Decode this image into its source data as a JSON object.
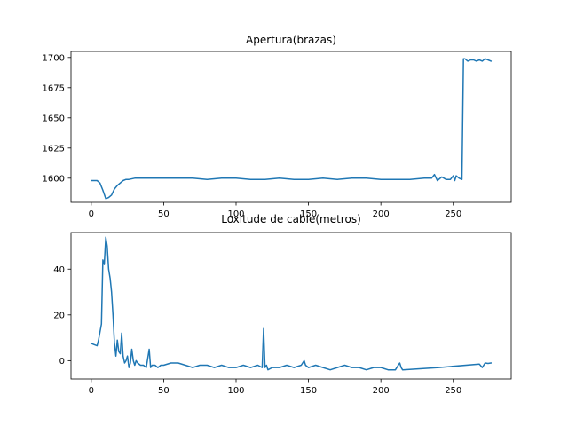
{
  "chart_data": [
    {
      "type": "line",
      "title": "Apertura(brazas)",
      "xlabel": "",
      "ylabel": "",
      "xlim": [
        -14,
        290
      ],
      "ylim": [
        1580,
        1705
      ],
      "xticks": [
        0,
        50,
        100,
        150,
        200,
        250
      ],
      "yticks": [
        1600,
        1625,
        1650,
        1675,
        1700
      ],
      "grid": false,
      "color": "#1f77b4",
      "series": [
        {
          "x": [
            0,
            4,
            6,
            8,
            10,
            12,
            14,
            16,
            18,
            20,
            22,
            24,
            26,
            30,
            40,
            50,
            60,
            70,
            80,
            90,
            100,
            110,
            120,
            130,
            140,
            150,
            160,
            170,
            180,
            190,
            200,
            210,
            220,
            230,
            235,
            237,
            239,
            242,
            245,
            248,
            250,
            251,
            252,
            254,
            256,
            257,
            258,
            260,
            262,
            264,
            266,
            268,
            270,
            272,
            274,
            276
          ],
          "y": [
            1598,
            1598,
            1596,
            1590,
            1583,
            1584,
            1586,
            1591,
            1594,
            1596,
            1598,
            1599,
            1599,
            1600,
            1600,
            1600,
            1600,
            1600,
            1599,
            1600,
            1600,
            1599,
            1599,
            1600,
            1599,
            1599,
            1600,
            1599,
            1600,
            1600,
            1599,
            1599,
            1599,
            1600,
            1600,
            1603,
            1598,
            1601,
            1599,
            1599,
            1602,
            1598,
            1602,
            1600,
            1599,
            1699,
            1699,
            1697,
            1698,
            1698,
            1697,
            1698,
            1697,
            1699,
            1698,
            1697
          ]
        }
      ]
    },
    {
      "type": "line",
      "title": "Loxitude de cable(metros)",
      "xlabel": "",
      "ylabel": "",
      "xlim": [
        -14,
        290
      ],
      "ylim": [
        -8,
        56
      ],
      "xticks": [
        0,
        50,
        100,
        150,
        200,
        250
      ],
      "yticks": [
        0,
        20,
        40
      ],
      "grid": false,
      "color": "#1f77b4",
      "series": [
        {
          "x": [
            0,
            2,
            4,
            5,
            7,
            8,
            9,
            10,
            11,
            12,
            13,
            14,
            15,
            16,
            17,
            18,
            19,
            20,
            21,
            22,
            23,
            24,
            25,
            26,
            27,
            28,
            29,
            30,
            31,
            32,
            34,
            36,
            38,
            40,
            41,
            42,
            44,
            46,
            48,
            50,
            55,
            60,
            65,
            70,
            75,
            80,
            85,
            90,
            95,
            100,
            105,
            110,
            115,
            118,
            119,
            120,
            121,
            122,
            125,
            130,
            135,
            140,
            145,
            147,
            148,
            150,
            155,
            160,
            165,
            170,
            175,
            180,
            185,
            190,
            195,
            200,
            205,
            210,
            212,
            213,
            214,
            215,
            240,
            268,
            270,
            272,
            274,
            276
          ],
          "y": [
            7.5,
            7,
            6.5,
            9,
            16,
            44,
            42,
            54,
            50,
            40,
            36,
            30,
            20,
            8,
            2,
            9,
            4,
            3,
            12,
            2,
            -1,
            0,
            2,
            -3,
            -1,
            5,
            0,
            -2,
            0,
            -1,
            -2,
            -2,
            -3,
            5,
            -3,
            -2,
            -2,
            -3,
            -2,
            -2,
            -1,
            -1,
            -2,
            -3,
            -2,
            -2,
            -3,
            -2,
            -3,
            -3,
            -2,
            -3,
            -2,
            -3,
            14,
            -3,
            -2,
            -4,
            -3,
            -3,
            -2,
            -3,
            -2,
            0,
            -2,
            -3,
            -2,
            -3,
            -4,
            -3,
            -2,
            -3,
            -3,
            -4,
            -3,
            -3,
            -4,
            -4,
            -2,
            -1,
            -3,
            -4,
            -3,
            -1.5,
            -3,
            -1,
            -1.2,
            -1
          ]
        }
      ]
    }
  ]
}
